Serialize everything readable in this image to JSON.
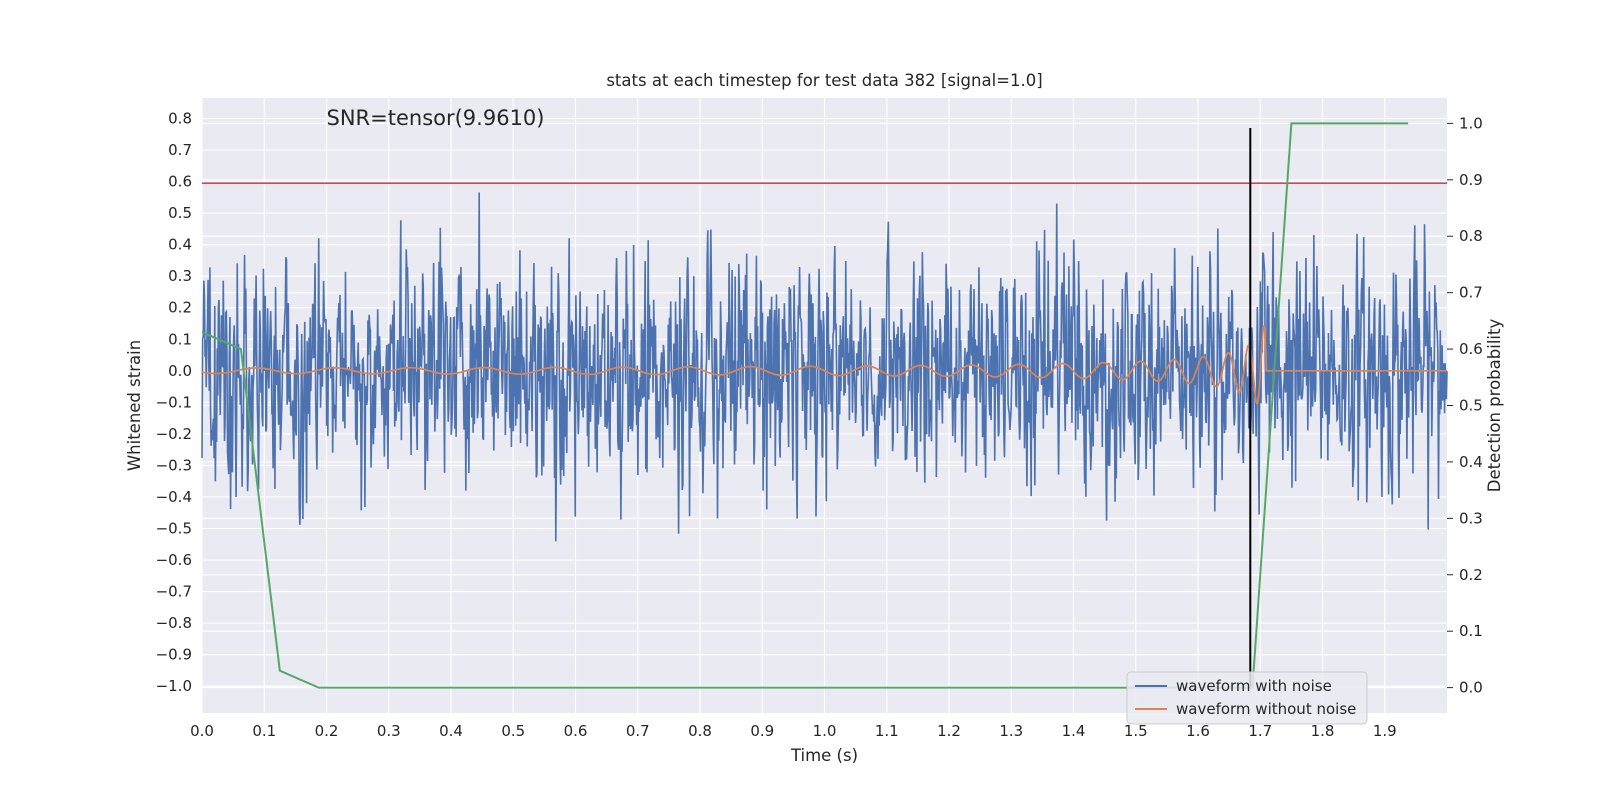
{
  "chart_data": {
    "type": "line",
    "title": "stats at each timestep for test data 382 [signal=1.0]",
    "xlabel": "Time (s)",
    "ylabel": "Whitened strain",
    "y2label": "Detection probability",
    "xlim": [
      0.0,
      2.0
    ],
    "ylim": [
      -1.085,
      0.865
    ],
    "y2lim": [
      -0.045,
      1.045
    ],
    "x_ticks": [
      "0.0",
      "0.1",
      "0.2",
      "0.3",
      "0.4",
      "0.5",
      "0.6",
      "0.7",
      "0.8",
      "0.9",
      "1.0",
      "1.1",
      "1.2",
      "1.3",
      "1.4",
      "1.5",
      "1.6",
      "1.7",
      "1.8",
      "1.9"
    ],
    "y_ticks": [
      "0.8",
      "0.7",
      "0.6",
      "0.5",
      "0.4",
      "0.3",
      "0.2",
      "0.1",
      "0.0",
      "−0.1",
      "−0.2",
      "−0.3",
      "−0.4",
      "−0.5",
      "−0.6",
      "−0.7",
      "−0.8",
      "−0.9",
      "−1.0"
    ],
    "y2_ticks": [
      "1.0",
      "0.9",
      "0.8",
      "0.7",
      "0.6",
      "0.5",
      "0.4",
      "0.3",
      "0.2",
      "0.1",
      "0.0"
    ],
    "annotation": "SNR=tensor(9.9610)",
    "grid": true,
    "legend_position": "lower-right",
    "colors": {
      "noise": "#4c72b0",
      "clean": "#dd8452",
      "probability": "#55a868",
      "threshold": "#c44e52",
      "event": "#000000",
      "background": "#eaeaf2",
      "grid": "#ffffff"
    },
    "series": [
      {
        "name": "waveform with noise",
        "axis": "left",
        "description": "whitened strain, noise dominated, roughly within ±0.6 with extremes near 0.77 and -0.85",
        "x_range": [
          0.0,
          2.0
        ]
      },
      {
        "name": "waveform without noise",
        "axis": "left",
        "description": "chirp signal, amplitude and frequency increasing until merger near t=1.71 s, flat 0.0 afterwards",
        "x_range": [
          0.0,
          2.0
        ]
      },
      {
        "axis": "right",
        "x": [
          0.0,
          0.0625,
          0.125,
          0.1875,
          1.6875,
          1.75,
          1.9375
        ],
        "y": [
          0.63,
          0.6,
          0.03,
          0.0,
          0.0,
          1.0,
          1.0
        ]
      }
    ],
    "hlines": [
      {
        "axis": "left",
        "y": 0.595
      }
    ],
    "vlines": [
      {
        "x": 1.684,
        "y_range": [
          -1.0,
          0.77
        ]
      }
    ]
  }
}
